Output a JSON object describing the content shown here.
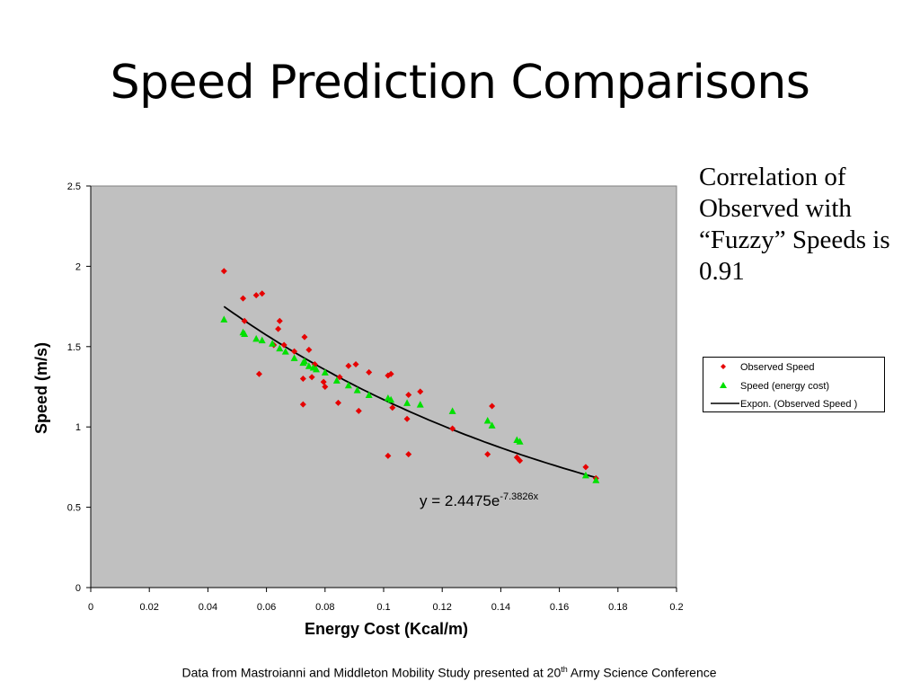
{
  "slide": {
    "title": "Speed Prediction Comparisons",
    "note": "Correlation of Observed with “Fuzzy” Speeds is  0.91",
    "footer_pre": "Data from Mastroianni and Middleton Mobility Study presented at 20",
    "footer_sup": "th",
    "footer_post": " Army Science Conference"
  },
  "chart_data": {
    "type": "scatter",
    "xlabel": "Energy Cost (Kcal/m)",
    "ylabel": "Speed (m/s)",
    "xlim": [
      0,
      0.2
    ],
    "ylim": [
      0,
      2.5
    ],
    "x_ticks": [
      "0",
      "0.02",
      "0.04",
      "0.06",
      "0.08",
      "0.1",
      "0.12",
      "0.14",
      "0.16",
      "0.18",
      "0.2"
    ],
    "y_ticks": [
      "0",
      "0.5",
      "1",
      "1.5",
      "2",
      "2.5"
    ],
    "plot_background": "#c0c0c0",
    "grid": false,
    "legend_position": "right",
    "equation": {
      "prefix": "y = 2.4475e",
      "exponent": "-7.3826x"
    },
    "series": [
      {
        "name": "Observed Speed",
        "marker": "diamond",
        "color": "#e60000",
        "points": [
          [
            0.0455,
            1.97
          ],
          [
            0.052,
            1.8
          ],
          [
            0.0525,
            1.66
          ],
          [
            0.0565,
            1.82
          ],
          [
            0.0575,
            1.33
          ],
          [
            0.0585,
            1.83
          ],
          [
            0.0625,
            1.51
          ],
          [
            0.064,
            1.61
          ],
          [
            0.0645,
            1.66
          ],
          [
            0.066,
            1.51
          ],
          [
            0.0695,
            1.47
          ],
          [
            0.0725,
            1.14
          ],
          [
            0.0725,
            1.3
          ],
          [
            0.073,
            1.56
          ],
          [
            0.0745,
            1.48
          ],
          [
            0.0755,
            1.31
          ],
          [
            0.0765,
            1.39
          ],
          [
            0.0795,
            1.28
          ],
          [
            0.08,
            1.25
          ],
          [
            0.0845,
            1.15
          ],
          [
            0.085,
            1.31
          ],
          [
            0.088,
            1.38
          ],
          [
            0.0905,
            1.39
          ],
          [
            0.0915,
            1.1
          ],
          [
            0.095,
            1.34
          ],
          [
            0.1015,
            0.82
          ],
          [
            0.1015,
            1.32
          ],
          [
            0.1025,
            1.33
          ],
          [
            0.103,
            1.12
          ],
          [
            0.108,
            1.05
          ],
          [
            0.1085,
            1.2
          ],
          [
            0.1085,
            0.83
          ],
          [
            0.1125,
            1.22
          ],
          [
            0.1235,
            0.99
          ],
          [
            0.1355,
            0.83
          ],
          [
            0.137,
            1.13
          ],
          [
            0.1455,
            0.81
          ],
          [
            0.1465,
            0.79
          ],
          [
            0.169,
            0.75
          ],
          [
            0.1725,
            0.68
          ]
        ]
      },
      {
        "name": "Speed (energy cost)",
        "marker": "triangle",
        "color": "#00e000",
        "points": [
          [
            0.0455,
            1.67
          ],
          [
            0.052,
            1.59
          ],
          [
            0.0525,
            1.58
          ],
          [
            0.0565,
            1.55
          ],
          [
            0.0585,
            1.54
          ],
          [
            0.062,
            1.52
          ],
          [
            0.0645,
            1.49
          ],
          [
            0.0665,
            1.47
          ],
          [
            0.0695,
            1.43
          ],
          [
            0.0725,
            1.4
          ],
          [
            0.073,
            1.41
          ],
          [
            0.0745,
            1.38
          ],
          [
            0.076,
            1.37
          ],
          [
            0.077,
            1.36
          ],
          [
            0.08,
            1.34
          ],
          [
            0.084,
            1.29
          ],
          [
            0.088,
            1.26
          ],
          [
            0.091,
            1.23
          ],
          [
            0.095,
            1.2
          ],
          [
            0.1015,
            1.18
          ],
          [
            0.1025,
            1.17
          ],
          [
            0.108,
            1.15
          ],
          [
            0.1125,
            1.14
          ],
          [
            0.1235,
            1.1
          ],
          [
            0.1355,
            1.04
          ],
          [
            0.137,
            1.01
          ],
          [
            0.1455,
            0.92
          ],
          [
            0.1465,
            0.91
          ],
          [
            0.169,
            0.7
          ],
          [
            0.1725,
            0.67
          ]
        ]
      },
      {
        "name": "Expon. (Observed Speed )",
        "marker": "line",
        "color": "#000000",
        "fit": {
          "a": 2.4475,
          "b": -7.3826,
          "x_range": [
            0.0455,
            0.1725
          ]
        }
      }
    ]
  }
}
